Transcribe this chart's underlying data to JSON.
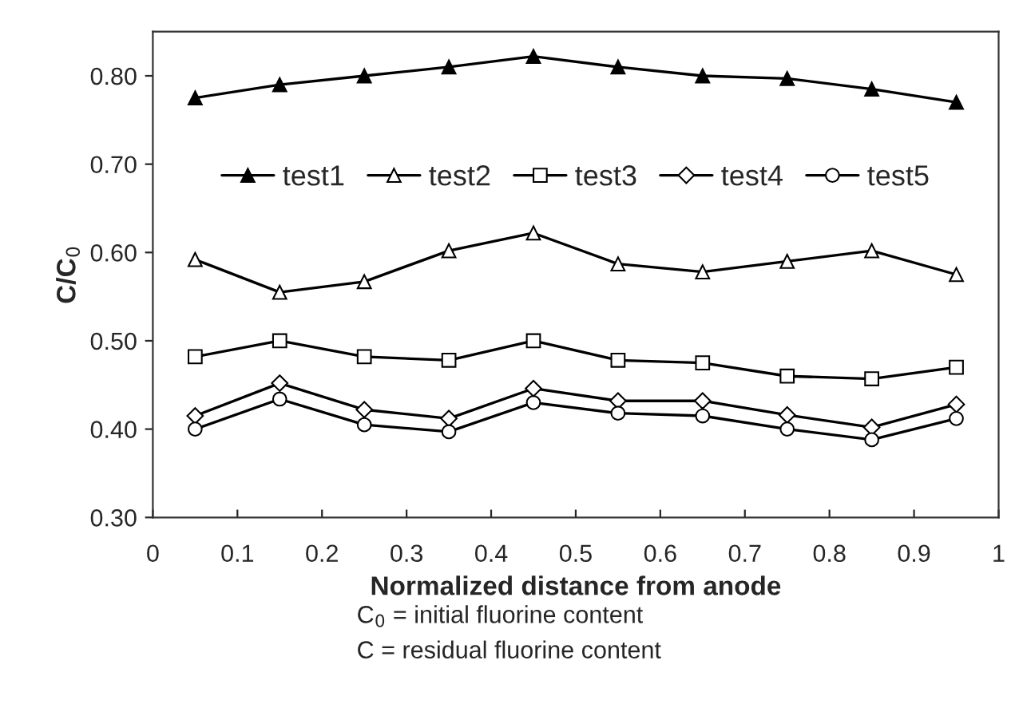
{
  "chart_data": {
    "type": "line",
    "x": [
      0.05,
      0.15,
      0.25,
      0.35,
      0.45,
      0.55,
      0.65,
      0.75,
      0.85,
      0.95
    ],
    "series": [
      {
        "name": "test1",
        "color": "#000000",
        "marker": "triangle",
        "values": [
          0.775,
          0.79,
          0.8,
          0.81,
          0.822,
          0.81,
          0.8,
          0.797,
          0.785,
          0.77
        ]
      },
      {
        "name": "test2",
        "color": "#000000",
        "marker": "triangle",
        "values": [
          0.592,
          0.555,
          0.567,
          0.602,
          0.622,
          0.587,
          0.578,
          0.59,
          0.602,
          0.575
        ]
      },
      {
        "name": "test3",
        "color": "#000000",
        "marker": "square",
        "values": [
          0.482,
          0.5,
          0.482,
          0.478,
          0.5,
          0.478,
          0.475,
          0.46,
          0.457,
          0.47
        ]
      },
      {
        "name": "test4",
        "color": "#000000",
        "marker": "diamond",
        "values": [
          0.415,
          0.452,
          0.422,
          0.412,
          0.446,
          0.432,
          0.432,
          0.416,
          0.402,
          0.428
        ]
      },
      {
        "name": "test5",
        "color": "#000000",
        "marker": "circle",
        "values": [
          0.4,
          0.434,
          0.405,
          0.397,
          0.43,
          0.418,
          0.415,
          0.4,
          0.388,
          0.412
        ]
      }
    ],
    "xlabel": "Normalized distance from anode",
    "ylabel": "C/C$_{0}$",
    "xlim": [
      0,
      1
    ],
    "xticks": [
      0,
      0.1,
      0.2,
      0.3,
      0.4,
      0.5,
      0.6,
      0.7,
      0.8,
      0.9,
      1
    ],
    "ylim": [
      0.3,
      0.85
    ],
    "yticks": [
      {
        "value": 0.3,
        "label": "0.30"
      },
      {
        "value": 0.4,
        "label": "0.40"
      },
      {
        "value": 0.5,
        "label": "0.50"
      },
      {
        "value": 0.6,
        "label": "0.60"
      },
      {
        "value": 0.7,
        "label": "0.70"
      },
      {
        "value": 0.8,
        "label": "0.80"
      }
    ],
    "annotations": [
      "C$_{0}$ = initial fluorine content",
      "C = residual fluorine content"
    ],
    "legend": "top",
    "grid": false,
    "line_style": "solid"
  }
}
